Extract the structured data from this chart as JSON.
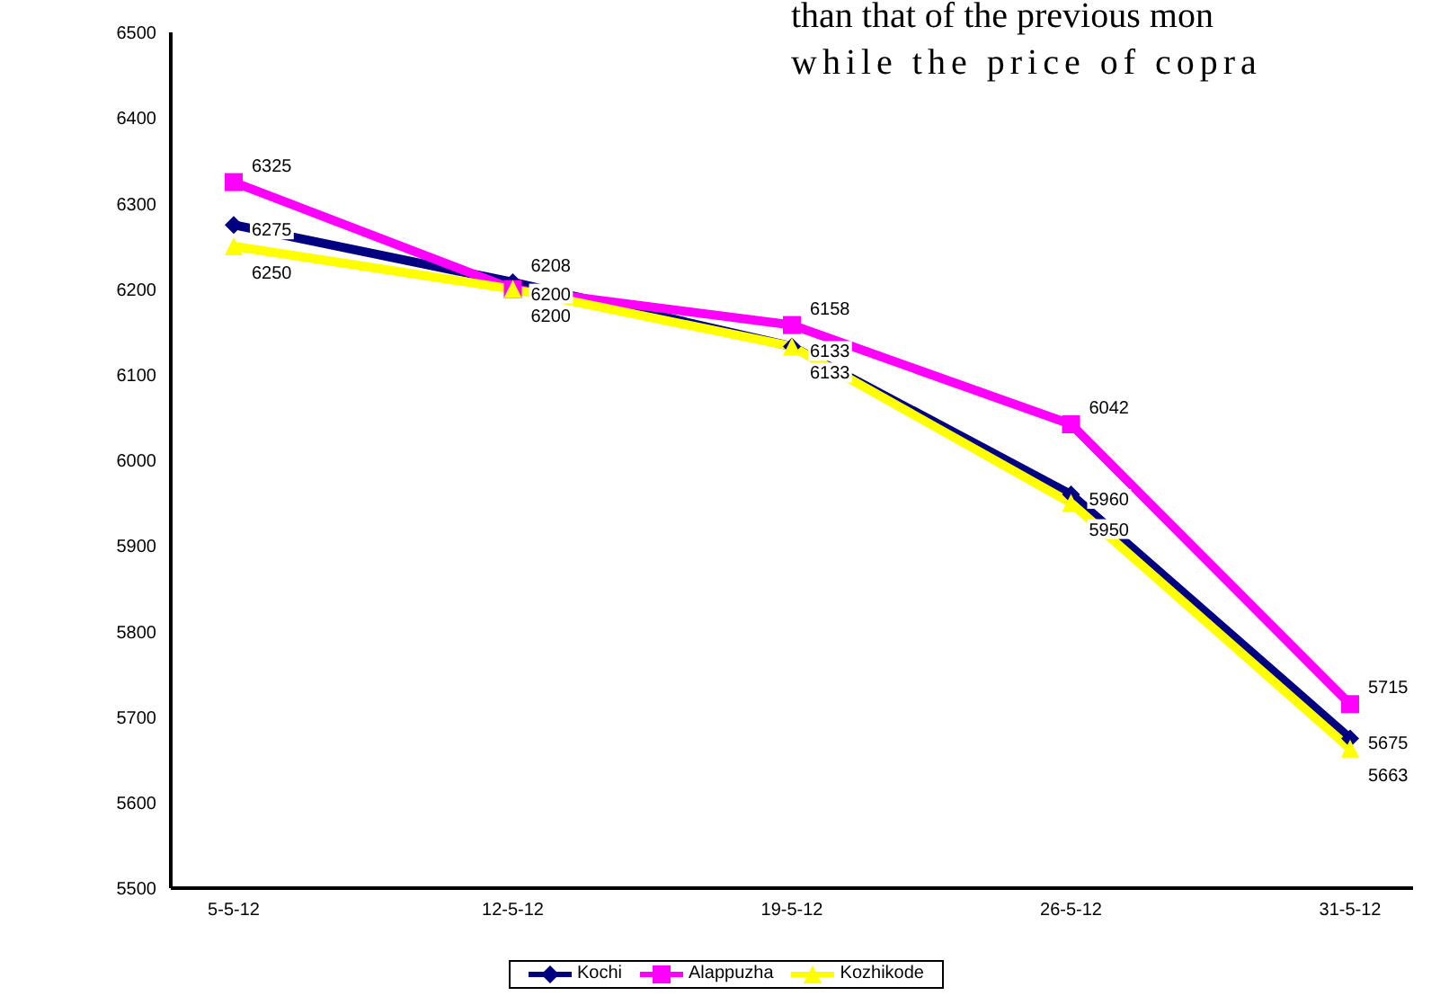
{
  "chart_data": {
    "type": "line",
    "categories": [
      "5-5-12",
      "12-5-12",
      "19-5-12",
      "26-5-12",
      "31-5-12"
    ],
    "series": [
      {
        "name": "Kochi",
        "color": "#000080",
        "marker": "diamond",
        "values": [
          6275,
          6208,
          6133,
          5960,
          5675
        ]
      },
      {
        "name": "Alappuzha",
        "color": "#ff00ff",
        "marker": "square",
        "values": [
          6325,
          6200,
          6158,
          6042,
          5715
        ]
      },
      {
        "name": "Kozhikode",
        "color": "#ffff00",
        "marker": "triangle",
        "values": [
          6250,
          6200,
          6133,
          5950,
          5663
        ]
      }
    ],
    "ylim": [
      5500,
      6500
    ],
    "yticks": [
      5500,
      5600,
      5700,
      5800,
      5900,
      6000,
      6100,
      6200,
      6300,
      6400,
      6500
    ],
    "grid": false,
    "legend": "bottom",
    "data_labels": true,
    "annotations": [
      "than that of the previous mon",
      "while the price of copra"
    ]
  }
}
